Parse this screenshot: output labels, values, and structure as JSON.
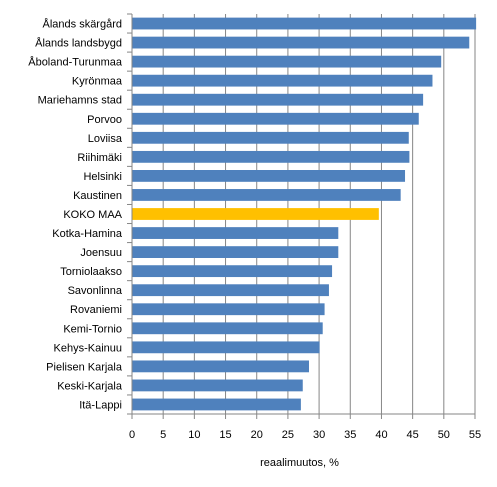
{
  "chart_data": {
    "type": "bar",
    "orientation": "horizontal",
    "categories": [
      "Ålands skärgård",
      "Ålands landsbygd",
      "Åboland-Turunmaa",
      "Kyrönmaa",
      "Mariehamns stad",
      "Porvoo",
      "Loviisa",
      "Riihimäki",
      "Helsinki",
      "Kaustinen",
      "KOKO MAA",
      "Kotka-Hamina",
      "Joensuu",
      "Torniolaakso",
      "Savonlinna",
      "Rovaniemi",
      "Kemi-Tornio",
      "Kehys-Kainuu",
      "Pielisen Karjala",
      "Keski-Karjala",
      "Itä-Lappi"
    ],
    "values": [
      55.1,
      54.0,
      49.5,
      48.1,
      46.6,
      45.9,
      44.3,
      44.4,
      43.7,
      43.0,
      39.5,
      33.0,
      33.0,
      32.0,
      31.5,
      30.8,
      30.5,
      30.0,
      28.3,
      27.3,
      27.0
    ],
    "highlight_category": "KOKO MAA",
    "xlabel": "reaalimuutos, %",
    "ylabel": "",
    "title": "",
    "xlim": [
      0,
      55
    ],
    "xticks": [
      "0",
      "5",
      "10",
      "15",
      "20",
      "25",
      "30",
      "35",
      "40",
      "45",
      "50",
      "55"
    ],
    "grid": "vertical",
    "legend": "none",
    "colors": {
      "bar": "#4f81bd",
      "highlight": "#ffc000",
      "grid": "#868686",
      "axis": "#868686"
    }
  }
}
